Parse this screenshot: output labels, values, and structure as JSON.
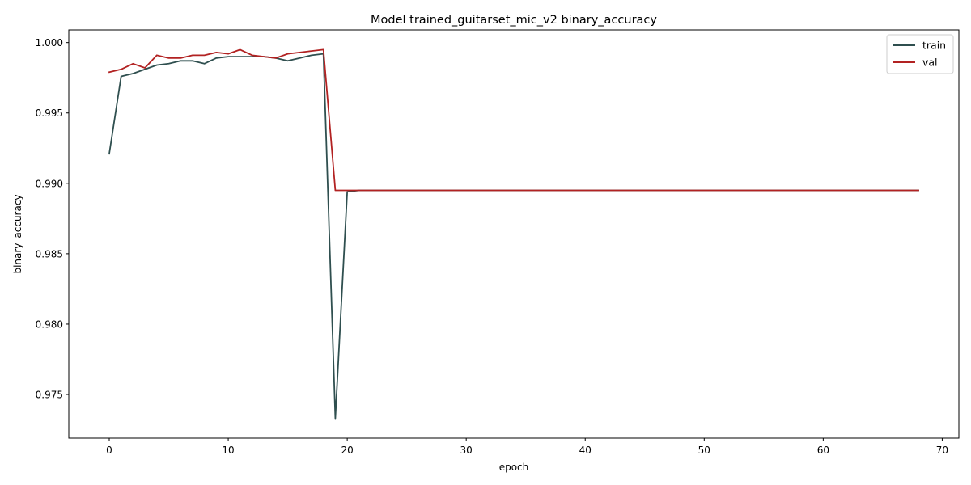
{
  "chart_data": {
    "type": "line",
    "title": "Model trained_guitarset_mic_v2 binary_accuracy",
    "xlabel": "epoch",
    "ylabel": "binary_accuracy",
    "xlim": [
      -3.4,
      71.4
    ],
    "ylim": [
      0.9719,
      1.0009
    ],
    "xticks": [
      0,
      10,
      20,
      30,
      40,
      50,
      60,
      70
    ],
    "yticks": [
      0.975,
      0.98,
      0.985,
      0.99,
      0.995,
      1.0
    ],
    "xtick_labels": [
      "0",
      "10",
      "20",
      "30",
      "40",
      "50",
      "60",
      "70"
    ],
    "ytick_labels": [
      "0.975",
      "0.980",
      "0.985",
      "0.990",
      "0.995",
      "1.000"
    ],
    "grid": false,
    "legend_position": "top-right",
    "series": [
      {
        "name": "train",
        "color": "#2f4f4f",
        "x": [
          0,
          1,
          2,
          3,
          4,
          5,
          6,
          7,
          8,
          9,
          10,
          11,
          12,
          13,
          14,
          15,
          16,
          17,
          18,
          19,
          20,
          21,
          22,
          23,
          24,
          25,
          26,
          27,
          28,
          29,
          30,
          31,
          32,
          33,
          34,
          35,
          36,
          37,
          38,
          39,
          40,
          41,
          42,
          43,
          44,
          45,
          46,
          47,
          48,
          49,
          50,
          51,
          52,
          53,
          54,
          55,
          56,
          57,
          58,
          59,
          60,
          61,
          62,
          63,
          64,
          65,
          66,
          67,
          68
        ],
        "y": [
          0.9921,
          0.9976,
          0.9978,
          0.9981,
          0.9984,
          0.9985,
          0.9987,
          0.9987,
          0.9985,
          0.9989,
          0.999,
          0.999,
          0.999,
          0.999,
          0.9989,
          0.9987,
          0.9989,
          0.9991,
          0.9992,
          0.9733,
          0.9894,
          0.9895,
          0.9895,
          0.9895,
          0.9895,
          0.9895,
          0.9895,
          0.9895,
          0.9895,
          0.9895,
          0.9895,
          0.9895,
          0.9895,
          0.9895,
          0.9895,
          0.9895,
          0.9895,
          0.9895,
          0.9895,
          0.9895,
          0.9895,
          0.9895,
          0.9895,
          0.9895,
          0.9895,
          0.9895,
          0.9895,
          0.9895,
          0.9895,
          0.9895,
          0.9895,
          0.9895,
          0.9895,
          0.9895,
          0.9895,
          0.9895,
          0.9895,
          0.9895,
          0.9895,
          0.9895,
          0.9895,
          0.9895,
          0.9895,
          0.9895,
          0.9895,
          0.9895,
          0.9895,
          0.9895,
          0.9895
        ]
      },
      {
        "name": "val",
        "color": "#b22222",
        "x": [
          0,
          1,
          2,
          3,
          4,
          5,
          6,
          7,
          8,
          9,
          10,
          11,
          12,
          13,
          14,
          15,
          16,
          17,
          18,
          19,
          20,
          21,
          22,
          23,
          24,
          25,
          26,
          27,
          28,
          29,
          30,
          31,
          32,
          33,
          34,
          35,
          36,
          37,
          38,
          39,
          40,
          41,
          42,
          43,
          44,
          45,
          46,
          47,
          48,
          49,
          50,
          51,
          52,
          53,
          54,
          55,
          56,
          57,
          58,
          59,
          60,
          61,
          62,
          63,
          64,
          65,
          66,
          67,
          68
        ],
        "y": [
          0.9979,
          0.9981,
          0.9985,
          0.9982,
          0.9991,
          0.9989,
          0.9989,
          0.9991,
          0.9991,
          0.9993,
          0.9992,
          0.9995,
          0.9991,
          0.999,
          0.9989,
          0.9992,
          0.9993,
          0.9994,
          0.9995,
          0.9895,
          0.9895,
          0.9895,
          0.9895,
          0.9895,
          0.9895,
          0.9895,
          0.9895,
          0.9895,
          0.9895,
          0.9895,
          0.9895,
          0.9895,
          0.9895,
          0.9895,
          0.9895,
          0.9895,
          0.9895,
          0.9895,
          0.9895,
          0.9895,
          0.9895,
          0.9895,
          0.9895,
          0.9895,
          0.9895,
          0.9895,
          0.9895,
          0.9895,
          0.9895,
          0.9895,
          0.9895,
          0.9895,
          0.9895,
          0.9895,
          0.9895,
          0.9895,
          0.9895,
          0.9895,
          0.9895,
          0.9895,
          0.9895,
          0.9895,
          0.9895,
          0.9895,
          0.9895,
          0.9895,
          0.9895,
          0.9895,
          0.9895
        ]
      }
    ]
  }
}
